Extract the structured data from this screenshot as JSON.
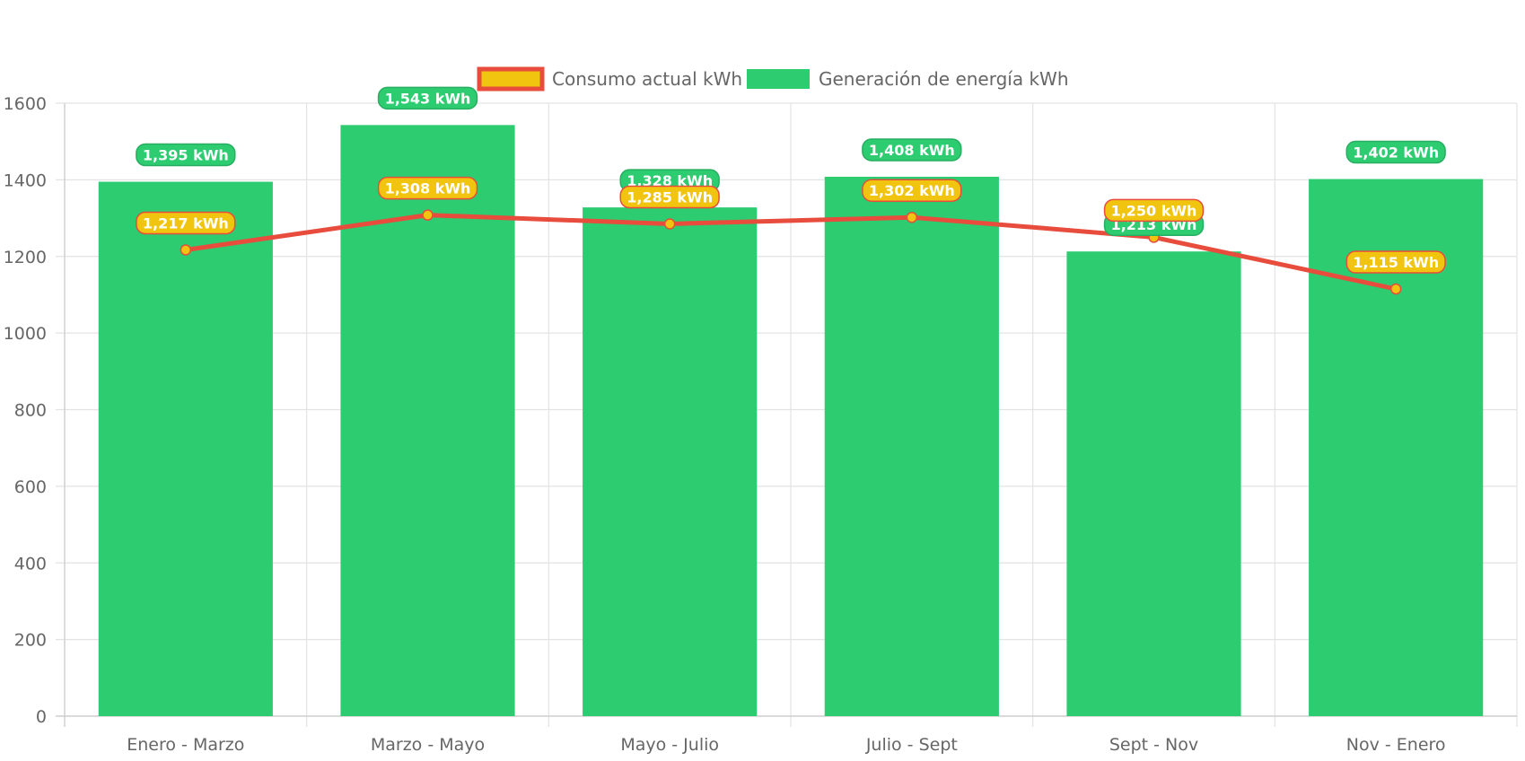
{
  "chart_data": {
    "type": "bar",
    "categories": [
      "Enero - Marzo",
      "Marzo - Mayo",
      "Mayo - Julio",
      "Julio - Sept",
      "Sept - Nov",
      "Nov - Enero"
    ],
    "series": [
      {
        "name": "Generación de energía kWh",
        "type": "bar",
        "values": [
          1395,
          1543,
          1328,
          1408,
          1213,
          1402
        ],
        "labels": [
          "1,395 kWh",
          "1,543 kWh",
          "1,328 kWh",
          "1,408 kWh",
          "1,213 kWh",
          "1,402 kWh"
        ],
        "color": "#2ecc71"
      },
      {
        "name": "Consumo actual kWh",
        "type": "line",
        "values": [
          1217,
          1308,
          1285,
          1302,
          1250,
          1115
        ],
        "labels": [
          "1,217 kWh",
          "1,308 kWh",
          "1,285 kWh",
          "1,302 kWh",
          "1,250 kWh",
          "1,115 kWh"
        ],
        "color": "#f1c40f",
        "border_color": "#e74c3c"
      }
    ],
    "y_ticks": [
      "0",
      "200",
      "400",
      "600",
      "800",
      "1000",
      "1200",
      "1400",
      "1600"
    ],
    "ylim": [
      0,
      1600
    ],
    "grid": true,
    "legend_position": "top"
  }
}
